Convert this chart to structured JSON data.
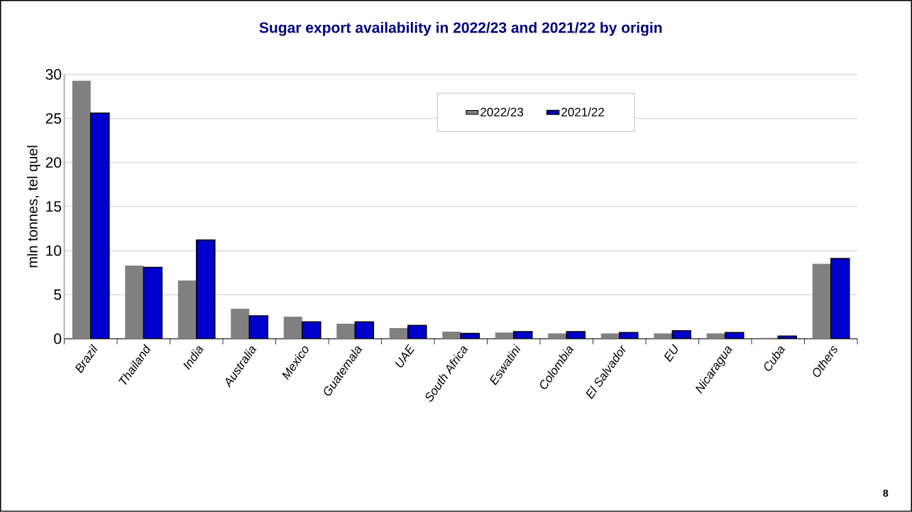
{
  "chart_data": {
    "type": "bar",
    "title": "Sugar export availability in 2022/23 and 2021/22 by origin",
    "ylabel": "mln tonnes, tel quel",
    "categories": [
      "Brazil",
      "Thailand",
      "India",
      "Australia",
      "Mexico",
      "Guatemala",
      "UAE",
      "South Africa",
      "Eswatini",
      "Colombia",
      "El Salvador",
      "EU",
      "Nicaragua",
      "Cuba",
      "Others"
    ],
    "series": [
      {
        "name": "2022/23",
        "color": "#808080",
        "values": [
          29.3,
          8.3,
          6.6,
          3.4,
          2.5,
          1.7,
          1.2,
          0.8,
          0.7,
          0.6,
          0.6,
          0.6,
          0.6,
          0.1,
          8.5
        ]
      },
      {
        "name": "2021/22",
        "color": "#0000cc",
        "values": [
          25.6,
          8.1,
          11.2,
          2.6,
          1.9,
          1.9,
          1.5,
          0.6,
          0.8,
          0.8,
          0.7,
          0.9,
          0.7,
          0.3,
          9.1
        ]
      }
    ],
    "ylim": [
      0,
      30
    ],
    "yticks": [
      0,
      5,
      10,
      15,
      20,
      25,
      30
    ],
    "grid": "y",
    "legend": "top right",
    "annotations": [
      "8"
    ]
  }
}
